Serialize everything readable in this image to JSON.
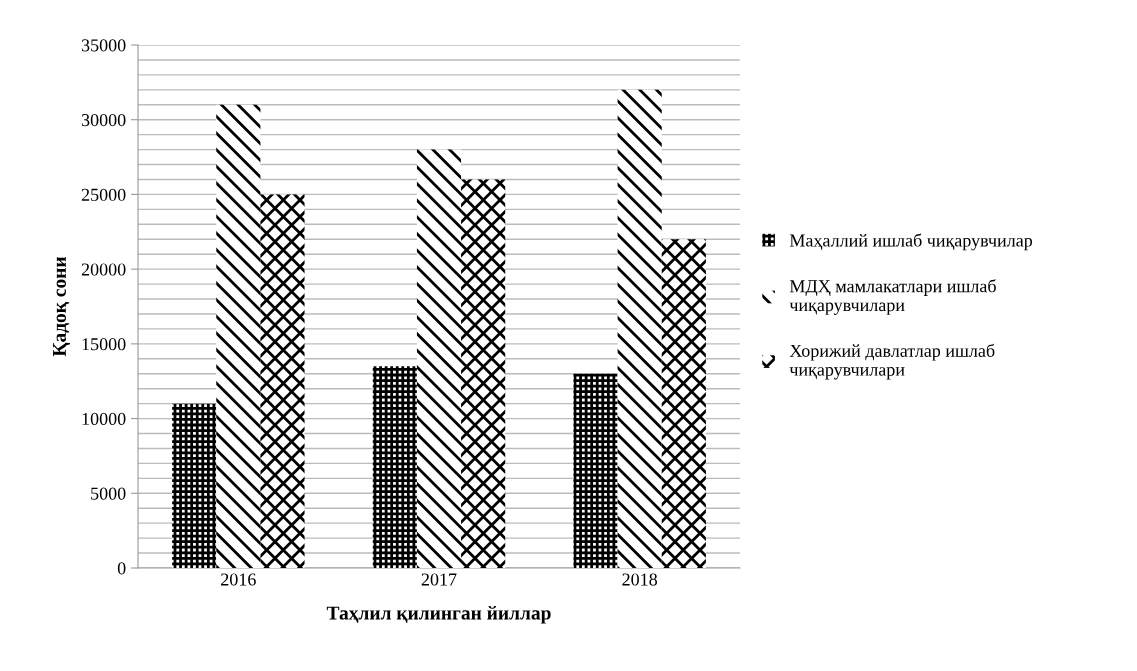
{
  "chart_data": {
    "type": "bar",
    "xlabel": "Таҳлил қилинган йиллар",
    "ylabel": "Қадоқ сони",
    "categories": [
      "2016",
      "2017",
      "2018"
    ],
    "series": [
      {
        "name": "Маҳаллий ишлаб чиқарувчилар",
        "color": "#000000",
        "values": [
          11000,
          13500,
          13000
        ]
      },
      {
        "name": "МДҲ мамлакатлари ишлаб\nчиқарувчилари",
        "color": "#000000",
        "values": [
          31000,
          28000,
          32000
        ]
      },
      {
        "name": "Хорижий давлатлар ишлаб\nчиқарувчилари",
        "color": "#000000",
        "values": [
          25000,
          26000,
          22000
        ]
      }
    ],
    "ylim": [
      0,
      35000
    ],
    "yticks": [
      0,
      {
        "value": 1000,
        "label": null
      },
      {
        "value": 2000,
        "label": null
      },
      {
        "value": 3000,
        "label": null
      },
      {
        "value": 4000,
        "label": null
      },
      5000,
      {
        "value": 6000,
        "label": null
      },
      {
        "value": 7000,
        "label": null
      },
      {
        "value": 8000,
        "label": null
      },
      {
        "value": 9000,
        "label": null
      },
      10000,
      {
        "value": 11000,
        "label": null
      },
      {
        "value": 12000,
        "label": null
      },
      {
        "value": 13000,
        "label": null
      },
      {
        "value": 14000,
        "label": null
      },
      15000,
      {
        "value": 16000,
        "label": null
      },
      {
        "value": 17000,
        "label": null
      },
      {
        "value": 18000,
        "label": null
      },
      {
        "value": 19000,
        "label": null
      },
      20000,
      {
        "value": 21000,
        "label": null
      },
      {
        "value": 22000,
        "label": null
      },
      {
        "value": 23000,
        "label": null
      },
      {
        "value": 24000,
        "label": null
      },
      25000,
      {
        "value": 26000,
        "label": null
      },
      {
        "value": 27000,
        "label": null
      },
      {
        "value": 28000,
        "label": null
      },
      {
        "value": 29000,
        "label": null
      },
      30000,
      {
        "value": 31000,
        "label": null
      },
      {
        "value": 32000,
        "label": null
      },
      {
        "value": 33000,
        "label": null
      },
      {
        "value": 34000,
        "label": null
      },
      35000
    ],
    "grid": "y",
    "legend": "right"
  }
}
